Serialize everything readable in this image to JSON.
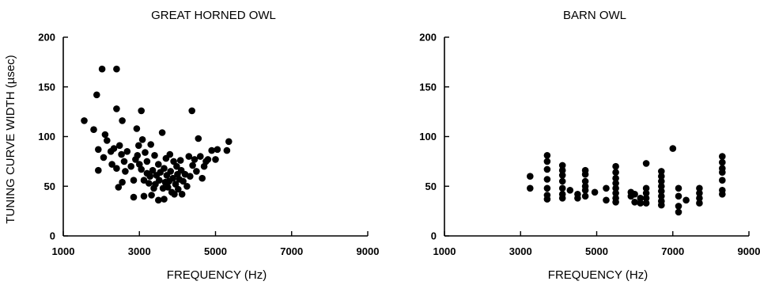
{
  "chart_data": [
    {
      "type": "scatter",
      "title": "GREAT HORNED OWL",
      "xlabel": "FREQUENCY (Hz)",
      "ylabel": "TUNING CURVE WIDTH (µsec)",
      "xlim": [
        1000,
        9000
      ],
      "ylim": [
        0,
        200
      ],
      "xticks": [
        "1000",
        "3000",
        "5000",
        "7000",
        "9000"
      ],
      "yticks": [
        "0",
        "50",
        "100",
        "150",
        "200"
      ],
      "grid": false,
      "series": [
        {
          "points": [
            [
              1550,
              116
            ],
            [
              1800,
              107
            ],
            [
              1880,
              142
            ],
            [
              1920,
              87
            ],
            [
              1920,
              66
            ],
            [
              2020,
              168
            ],
            [
              2060,
              79
            ],
            [
              2100,
              102
            ],
            [
              2150,
              96
            ],
            [
              2250,
              85
            ],
            [
              2280,
              72
            ],
            [
              2330,
              88
            ],
            [
              2400,
              168
            ],
            [
              2400,
              128
            ],
            [
              2400,
              68
            ],
            [
              2450,
              49
            ],
            [
              2480,
              91
            ],
            [
              2530,
              82
            ],
            [
              2550,
              116
            ],
            [
              2550,
              54
            ],
            [
              2600,
              75
            ],
            [
              2630,
              65
            ],
            [
              2680,
              85
            ],
            [
              2780,
              70
            ],
            [
              2850,
              56
            ],
            [
              2850,
              39
            ],
            [
              2900,
              77
            ],
            [
              2930,
              108
            ],
            [
              2950,
              81
            ],
            [
              2980,
              91
            ],
            [
              3000,
              72
            ],
            [
              3050,
              67
            ],
            [
              3050,
              126
            ],
            [
              3080,
              97
            ],
            [
              3120,
              56
            ],
            [
              3120,
              40
            ],
            [
              3150,
              84
            ],
            [
              3200,
              75
            ],
            [
              3200,
              63
            ],
            [
              3250,
              53
            ],
            [
              3280,
              60
            ],
            [
              3300,
              92
            ],
            [
              3320,
              41
            ],
            [
              3350,
              66
            ],
            [
              3380,
              48
            ],
            [
              3400,
              81
            ],
            [
              3420,
              52
            ],
            [
              3450,
              61
            ],
            [
              3500,
              72
            ],
            [
              3500,
              36
            ],
            [
              3520,
              56
            ],
            [
              3550,
              64
            ],
            [
              3600,
              104
            ],
            [
              3620,
              48
            ],
            [
              3650,
              68
            ],
            [
              3650,
              37
            ],
            [
              3680,
              54
            ],
            [
              3700,
              78
            ],
            [
              3720,
              61
            ],
            [
              3750,
              49
            ],
            [
              3780,
              55
            ],
            [
              3800,
              82
            ],
            [
              3820,
              65
            ],
            [
              3850,
              44
            ],
            [
              3880,
              58
            ],
            [
              3900,
              75
            ],
            [
              3920,
              42
            ],
            [
              3950,
              52
            ],
            [
              3980,
              70
            ],
            [
              4000,
              62
            ],
            [
              4020,
              47
            ],
            [
              4050,
              57
            ],
            [
              4080,
              76
            ],
            [
              4100,
              66
            ],
            [
              4120,
              42
            ],
            [
              4150,
              55
            ],
            [
              4200,
              62
            ],
            [
              4250,
              50
            ],
            [
              4300,
              80
            ],
            [
              4330,
              60
            ],
            [
              4380,
              126
            ],
            [
              4400,
              71
            ],
            [
              4450,
              77
            ],
            [
              4500,
              65
            ],
            [
              4550,
              98
            ],
            [
              4600,
              80
            ],
            [
              4650,
              58
            ],
            [
              4700,
              70
            ],
            [
              4750,
              75
            ],
            [
              4800,
              77
            ],
            [
              4900,
              86
            ],
            [
              5000,
              77
            ],
            [
              5050,
              87
            ],
            [
              5300,
              86
            ],
            [
              5350,
              95
            ]
          ]
        }
      ]
    },
    {
      "type": "scatter",
      "title": "BARN OWL",
      "xlabel": "FREQUENCY (Hz)",
      "ylabel": "",
      "xlim": [
        1000,
        9000
      ],
      "ylim": [
        0,
        200
      ],
      "xticks": [
        "1000",
        "3000",
        "5000",
        "7000",
        "9000"
      ],
      "yticks": [
        "0",
        "50",
        "100",
        "150",
        "200"
      ],
      "grid": false,
      "series": [
        {
          "points": [
            [
              3250,
              60
            ],
            [
              3250,
              48
            ],
            [
              3700,
              81
            ],
            [
              3700,
              75
            ],
            [
              3700,
              67
            ],
            [
              3700,
              57
            ],
            [
              3700,
              48
            ],
            [
              3700,
              41
            ],
            [
              3700,
              37
            ],
            [
              4100,
              71
            ],
            [
              4100,
              66
            ],
            [
              4100,
              61
            ],
            [
              4100,
              55
            ],
            [
              4100,
              48
            ],
            [
              4100,
              42
            ],
            [
              4100,
              38
            ],
            [
              4300,
              46
            ],
            [
              4500,
              42
            ],
            [
              4500,
              38
            ],
            [
              4700,
              66
            ],
            [
              4700,
              62
            ],
            [
              4700,
              55
            ],
            [
              4700,
              50
            ],
            [
              4700,
              46
            ],
            [
              4700,
              40
            ],
            [
              4950,
              44
            ],
            [
              5250,
              48
            ],
            [
              5250,
              36
            ],
            [
              5500,
              70
            ],
            [
              5500,
              64
            ],
            [
              5500,
              58
            ],
            [
              5500,
              53
            ],
            [
              5500,
              48
            ],
            [
              5500,
              43
            ],
            [
              5500,
              38
            ],
            [
              5500,
              34
            ],
            [
              5900,
              44
            ],
            [
              5900,
              40
            ],
            [
              6000,
              42
            ],
            [
              6000,
              34
            ],
            [
              6150,
              38
            ],
            [
              6150,
              33
            ],
            [
              6300,
              73
            ],
            [
              6300,
              48
            ],
            [
              6300,
              43
            ],
            [
              6300,
              38
            ],
            [
              6300,
              33
            ],
            [
              6700,
              65
            ],
            [
              6700,
              60
            ],
            [
              6700,
              55
            ],
            [
              6700,
              50
            ],
            [
              6700,
              45
            ],
            [
              6700,
              40
            ],
            [
              6700,
              35
            ],
            [
              6700,
              31
            ],
            [
              7000,
              88
            ],
            [
              7150,
              48
            ],
            [
              7150,
              40
            ],
            [
              7150,
              30
            ],
            [
              7150,
              24
            ],
            [
              7350,
              36
            ],
            [
              7700,
              48
            ],
            [
              7700,
              43
            ],
            [
              7700,
              38
            ],
            [
              7700,
              33
            ],
            [
              8300,
              80
            ],
            [
              8300,
              74
            ],
            [
              8300,
              68
            ],
            [
              8300,
              64
            ],
            [
              8300,
              56
            ],
            [
              8300,
              46
            ],
            [
              8300,
              42
            ]
          ]
        }
      ]
    }
  ]
}
